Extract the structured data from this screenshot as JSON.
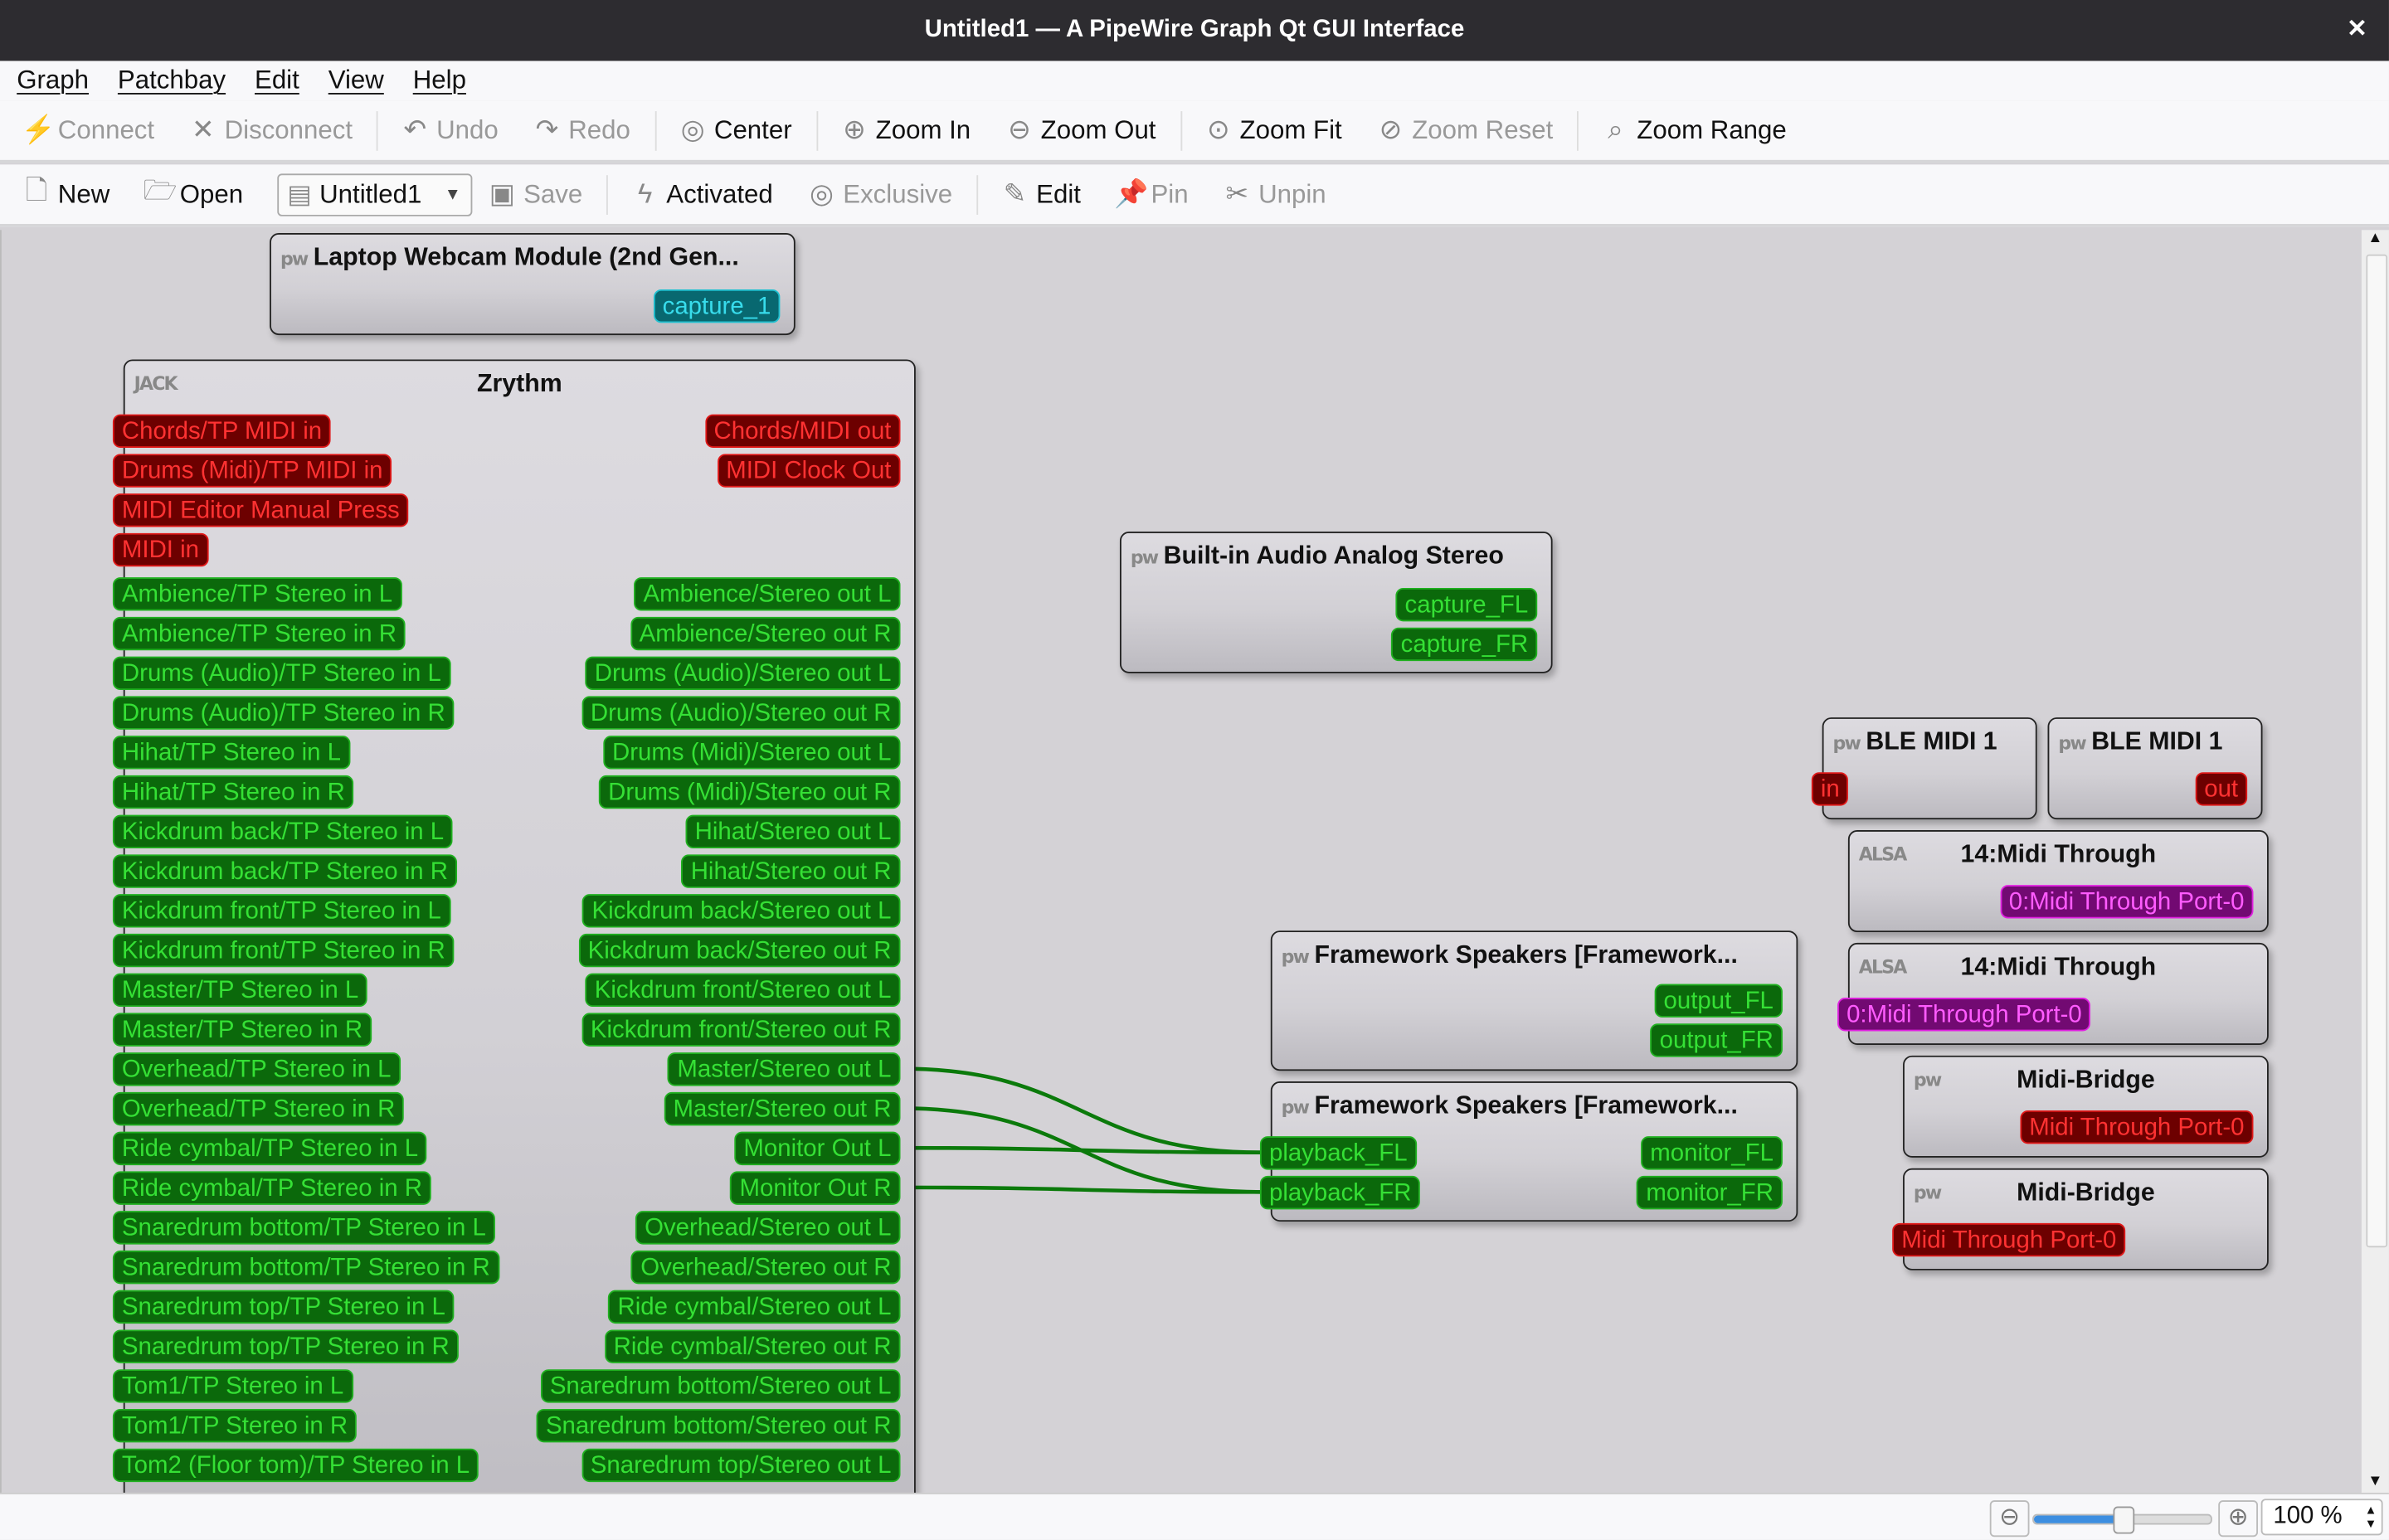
{
  "window": {
    "title": "Untitled1 — A PipeWire Graph Qt GUI Interface",
    "close_icon": "close-icon"
  },
  "menu": [
    "Graph",
    "Patchbay",
    "Edit",
    "View",
    "Help"
  ],
  "toolbar1": [
    {
      "label": "Connect",
      "icon": "connect-icon",
      "enabled": false
    },
    {
      "label": "Disconnect",
      "icon": "disconnect-icon",
      "enabled": false
    },
    {
      "label": "Undo",
      "icon": "undo-icon",
      "enabled": false
    },
    {
      "label": "Redo",
      "icon": "redo-icon",
      "enabled": false
    },
    {
      "label": "Center",
      "icon": "center-icon",
      "enabled": true
    },
    {
      "label": "Zoom In",
      "icon": "zoom-in-icon",
      "enabled": true
    },
    {
      "label": "Zoom Out",
      "icon": "zoom-out-icon",
      "enabled": true
    },
    {
      "label": "Zoom Fit",
      "icon": "zoom-fit-icon",
      "enabled": true
    },
    {
      "label": "Zoom Reset",
      "icon": "zoom-reset-icon",
      "enabled": false
    },
    {
      "label": "Zoom Range",
      "icon": "zoom-range-icon",
      "enabled": true
    }
  ],
  "toolbar2": {
    "new": "New",
    "open": "Open",
    "patchbay_select": "Untitled1",
    "save": "Save",
    "activated": "Activated",
    "exclusive": "Exclusive",
    "edit": "Edit",
    "pin": "Pin",
    "unpin": "Unpin"
  },
  "status": {
    "zoom_value": "100 %",
    "zoom_level_percent": 100
  },
  "colors": {
    "audio": "#35e035",
    "midi": "#ff3232",
    "alsa_midi": "#ff5cff",
    "video": "#38dcec",
    "wire": "#0b7a0b"
  },
  "nodes": [
    {
      "id": "webcam",
      "title": "Laptop Webcam Module (2nd Gen...",
      "icon": "pw",
      "out": [
        {
          "n": "capture_1",
          "t": "video"
        }
      ]
    },
    {
      "id": "zrythm",
      "title": "Zrythm",
      "icon": "JACK",
      "center": true,
      "in": [
        {
          "n": "Chords/TP MIDI in",
          "t": "midi"
        },
        {
          "n": "Drums (Midi)/TP MIDI in",
          "t": "midi"
        },
        {
          "n": "MIDI Editor Manual Press",
          "t": "midi"
        },
        {
          "n": "MIDI in",
          "t": "midi"
        },
        {
          "n": "Ambience/TP Stereo in L",
          "t": "audio"
        },
        {
          "n": "Ambience/TP Stereo in R",
          "t": "audio"
        },
        {
          "n": "Drums (Audio)/TP Stereo in L",
          "t": "audio"
        },
        {
          "n": "Drums (Audio)/TP Stereo in R",
          "t": "audio"
        },
        {
          "n": "Hihat/TP Stereo in L",
          "t": "audio"
        },
        {
          "n": "Hihat/TP Stereo in R",
          "t": "audio"
        },
        {
          "n": "Kickdrum back/TP Stereo in L",
          "t": "audio"
        },
        {
          "n": "Kickdrum back/TP Stereo in R",
          "t": "audio"
        },
        {
          "n": "Kickdrum front/TP Stereo in L",
          "t": "audio"
        },
        {
          "n": "Kickdrum front/TP Stereo in R",
          "t": "audio"
        },
        {
          "n": "Master/TP Stereo in L",
          "t": "audio"
        },
        {
          "n": "Master/TP Stereo in R",
          "t": "audio"
        },
        {
          "n": "Overhead/TP Stereo in L",
          "t": "audio"
        },
        {
          "n": "Overhead/TP Stereo in R",
          "t": "audio"
        },
        {
          "n": "Ride cymbal/TP Stereo in L",
          "t": "audio"
        },
        {
          "n": "Ride cymbal/TP Stereo in R",
          "t": "audio"
        },
        {
          "n": "Snaredrum bottom/TP Stereo in L",
          "t": "audio"
        },
        {
          "n": "Snaredrum bottom/TP Stereo in R",
          "t": "audio"
        },
        {
          "n": "Snaredrum top/TP Stereo in L",
          "t": "audio"
        },
        {
          "n": "Snaredrum top/TP Stereo in R",
          "t": "audio"
        },
        {
          "n": "Tom1/TP Stereo in L",
          "t": "audio"
        },
        {
          "n": "Tom1/TP Stereo in R",
          "t": "audio"
        },
        {
          "n": "Tom2 (Floor tom)/TP Stereo in L",
          "t": "audio"
        }
      ],
      "out": [
        {
          "n": "Chords/MIDI out",
          "t": "midi"
        },
        {
          "n": "MIDI Clock Out",
          "t": "midi"
        },
        {
          "n": "",
          "t": "spacer"
        },
        {
          "n": "",
          "t": "spacer"
        },
        {
          "n": "Ambience/Stereo out L",
          "t": "audio"
        },
        {
          "n": "Ambience/Stereo out R",
          "t": "audio"
        },
        {
          "n": "Drums (Audio)/Stereo out L",
          "t": "audio"
        },
        {
          "n": "Drums (Audio)/Stereo out R",
          "t": "audio"
        },
        {
          "n": "Drums (Midi)/Stereo out L",
          "t": "audio"
        },
        {
          "n": "Drums (Midi)/Stereo out R",
          "t": "audio"
        },
        {
          "n": "Hihat/Stereo out L",
          "t": "audio"
        },
        {
          "n": "Hihat/Stereo out R",
          "t": "audio"
        },
        {
          "n": "Kickdrum back/Stereo out L",
          "t": "audio"
        },
        {
          "n": "Kickdrum back/Stereo out R",
          "t": "audio"
        },
        {
          "n": "Kickdrum front/Stereo out L",
          "t": "audio"
        },
        {
          "n": "Kickdrum front/Stereo out R",
          "t": "audio"
        },
        {
          "n": "Master/Stereo out L",
          "t": "audio"
        },
        {
          "n": "Master/Stereo out R",
          "t": "audio"
        },
        {
          "n": "Monitor Out L",
          "t": "audio"
        },
        {
          "n": "Monitor Out R",
          "t": "audio"
        },
        {
          "n": "Overhead/Stereo out L",
          "t": "audio"
        },
        {
          "n": "Overhead/Stereo out R",
          "t": "audio"
        },
        {
          "n": "Ride cymbal/Stereo out L",
          "t": "audio"
        },
        {
          "n": "Ride cymbal/Stereo out R",
          "t": "audio"
        },
        {
          "n": "Snaredrum bottom/Stereo out L",
          "t": "audio"
        },
        {
          "n": "Snaredrum bottom/Stereo out R",
          "t": "audio"
        },
        {
          "n": "Snaredrum top/Stereo out L",
          "t": "audio"
        }
      ]
    },
    {
      "id": "builtin",
      "title": "Built-in Audio Analog Stereo",
      "icon": "pw",
      "out": [
        {
          "n": "capture_FL",
          "t": "audio"
        },
        {
          "n": "capture_FR",
          "t": "audio"
        }
      ]
    },
    {
      "id": "ble1",
      "title": "BLE MIDI 1",
      "icon": "pw",
      "in": [
        {
          "n": "in",
          "t": "midi"
        }
      ]
    },
    {
      "id": "ble2",
      "title": "BLE MIDI 1",
      "icon": "pw",
      "out": [
        {
          "n": "out",
          "t": "midi"
        }
      ]
    },
    {
      "id": "mt1",
      "title": "14:Midi Through",
      "icon": "ALSA",
      "center": true,
      "out": [
        {
          "n": "0:Midi Through Port-0",
          "t": "alsa"
        }
      ]
    },
    {
      "id": "mt2",
      "title": "14:Midi Through",
      "icon": "ALSA",
      "center": true,
      "in": [
        {
          "n": "0:Midi Through Port-0",
          "t": "alsa"
        }
      ]
    },
    {
      "id": "fw1",
      "title": "Framework Speakers [Framework...",
      "icon": "pw",
      "out": [
        {
          "n": "output_FL",
          "t": "audio"
        },
        {
          "n": "output_FR",
          "t": "audio"
        }
      ]
    },
    {
      "id": "fw2",
      "title": "Framework Speakers [Framework...",
      "icon": "pw",
      "in": [
        {
          "n": "playback_FL",
          "t": "audio"
        },
        {
          "n": "playback_FR",
          "t": "audio"
        }
      ],
      "out": [
        {
          "n": "monitor_FL",
          "t": "audio"
        },
        {
          "n": "monitor_FR",
          "t": "audio"
        }
      ]
    },
    {
      "id": "mb1",
      "title": "Midi-Bridge",
      "icon": "pw",
      "center": true,
      "out": [
        {
          "n": "Midi Through Port-0",
          "t": "midi"
        }
      ]
    },
    {
      "id": "mb2",
      "title": "Midi-Bridge",
      "icon": "pw",
      "center": true,
      "in": [
        {
          "n": "Midi Through Port-0",
          "t": "midi"
        }
      ]
    }
  ],
  "connections": [
    {
      "from": "Zrythm:Master/Stereo out L",
      "to": "Framework Speakers:playback_FL"
    },
    {
      "from": "Zrythm:Master/Stereo out R",
      "to": "Framework Speakers:playback_FR"
    },
    {
      "from": "Zrythm:Monitor Out L",
      "to": "Framework Speakers:playback_FL"
    },
    {
      "from": "Zrythm:Monitor Out R",
      "to": "Framework Speakers:playback_FR"
    }
  ]
}
